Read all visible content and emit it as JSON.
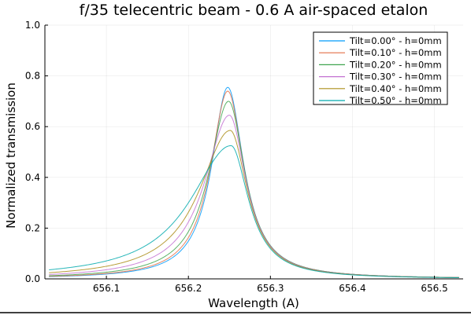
{
  "chart_data": {
    "type": "line",
    "title": "f/35 telecentric beam - 0.6 A air-spaced etalon",
    "xlabel": "Wavelength (A)",
    "ylabel": "Normalized transmission",
    "xlim": [
      656.025,
      656.535
    ],
    "ylim": [
      0,
      1.0
    ],
    "xticks": [
      656.1,
      656.2,
      656.3,
      656.4,
      656.5
    ],
    "xtick_labels": [
      "656.1",
      "656.2",
      "656.3",
      "656.4",
      "656.5"
    ],
    "yticks": [
      0,
      0.2,
      0.4,
      0.6,
      0.8,
      1.0
    ],
    "ytick_labels": [
      "0.0",
      "0.2",
      "0.4",
      "0.6",
      "0.8",
      "1.0"
    ],
    "grid": true,
    "legend_position": "top-right",
    "series": [
      {
        "name": "Tilt=0.00° - h=0mm",
        "color": "#009AFA",
        "peak": 0.755,
        "center": 656.248,
        "hw_left": 0.0238,
        "hw_right": 0.0238,
        "x_start": 656.03,
        "x_end": 656.53
      },
      {
        "name": "Tilt=0.10° - h=0mm",
        "color": "#E36F47",
        "peak": 0.74,
        "center": 656.248,
        "hw_left": 0.0255,
        "hw_right": 0.024,
        "x_start": 656.03,
        "x_end": 656.53
      },
      {
        "name": "Tilt=0.20° - h=0mm",
        "color": "#3EA44E",
        "peak": 0.7,
        "center": 656.249,
        "hw_left": 0.0295,
        "hw_right": 0.0245,
        "x_start": 656.03,
        "x_end": 656.53
      },
      {
        "name": "Tilt=0.30° - h=0mm",
        "color": "#C371D2",
        "peak": 0.645,
        "center": 656.25,
        "hw_left": 0.0365,
        "hw_right": 0.025,
        "x_start": 656.03,
        "x_end": 656.53
      },
      {
        "name": "Tilt=0.40° - h=0mm",
        "color": "#AC8D18",
        "peak": 0.585,
        "center": 656.251,
        "hw_left": 0.046,
        "hw_right": 0.0255,
        "x_start": 656.03,
        "x_end": 656.53
      },
      {
        "name": "Tilt=0.50° - h=0mm",
        "color": "#00A9AD",
        "peak": 0.525,
        "center": 656.252,
        "hw_left": 0.06,
        "hw_right": 0.026,
        "x_start": 656.03,
        "x_end": 656.53
      }
    ]
  }
}
